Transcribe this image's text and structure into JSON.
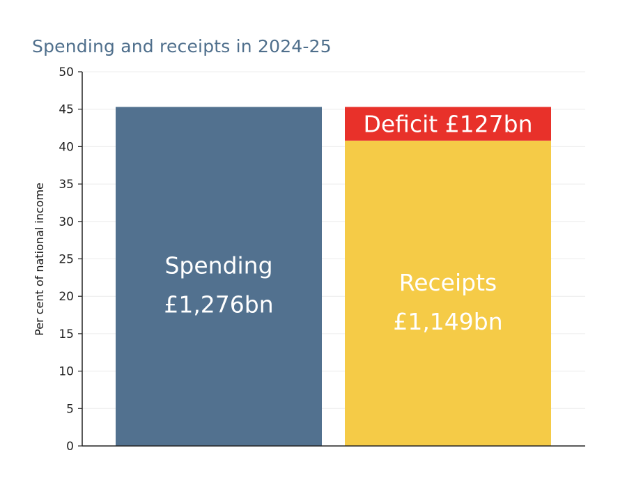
{
  "chart_data": {
    "type": "bar",
    "title": "Spending and receipts in 2024-25",
    "ylabel": "Per cent of national income",
    "ylim": [
      0,
      50
    ],
    "yticks": [
      0,
      5,
      10,
      15,
      20,
      25,
      30,
      35,
      40,
      45,
      50
    ],
    "grid": true,
    "bars": [
      {
        "name": "Spending",
        "amount_label": "£1,276bn",
        "value": 45.3,
        "color": "#52718f"
      },
      {
        "name": "Receipts",
        "amount_label": "£1,149bn",
        "value": 40.8,
        "color": "#f5cb47",
        "stack": {
          "label": "Deficit £127bn",
          "value": 4.5,
          "color": "#e8312a"
        }
      }
    ]
  }
}
